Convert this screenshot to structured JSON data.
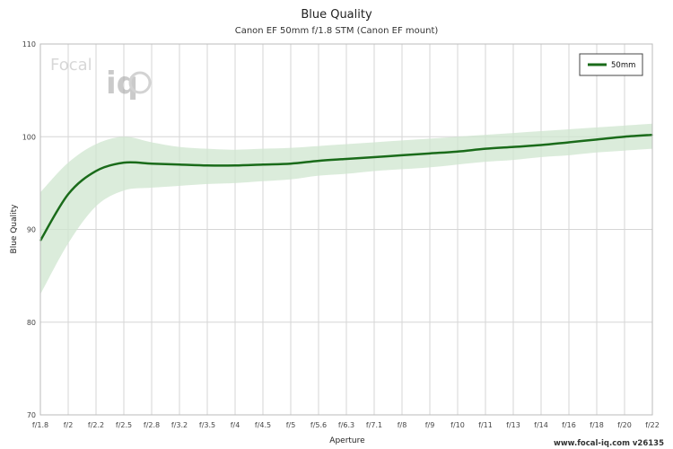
{
  "chart_data": {
    "type": "line",
    "title": "Blue Quality",
    "subtitle": "Canon EF 50mm f/1.8 STM (Canon EF mount)",
    "xlabel": "Aperture",
    "ylabel": "Blue Quality",
    "ylim": [
      70,
      110
    ],
    "yticks": [
      70,
      80,
      90,
      100,
      110
    ],
    "categories": [
      "f/1.8",
      "f/2",
      "f/2.2",
      "f/2.5",
      "f/2.8",
      "f/3.2",
      "f/3.5",
      "f/4",
      "f/4.5",
      "f/5",
      "f/5.6",
      "f/6.3",
      "f/7.1",
      "f/8",
      "f/9",
      "f/10",
      "f/11",
      "f/13",
      "f/14",
      "f/16",
      "f/18",
      "f/20",
      "f/22"
    ],
    "series": [
      {
        "name": "50mm",
        "color": "#1a6b1a",
        "values": [
          88.8,
          93.8,
          96.3,
          97.2,
          97.1,
          97.0,
          96.9,
          96.9,
          97.0,
          97.1,
          97.4,
          97.6,
          97.8,
          98.0,
          98.2,
          98.4,
          98.7,
          98.9,
          99.1,
          99.4,
          99.7,
          100.0,
          100.2
        ],
        "upper": [
          94.0,
          97.2,
          99.2,
          100.0,
          99.4,
          98.9,
          98.7,
          98.6,
          98.7,
          98.8,
          99.0,
          99.2,
          99.4,
          99.6,
          99.8,
          100.0,
          100.2,
          100.4,
          100.6,
          100.8,
          101.0,
          101.2,
          101.4
        ],
        "lower": [
          83.0,
          88.5,
          92.5,
          94.2,
          94.5,
          94.7,
          94.9,
          95.0,
          95.2,
          95.4,
          95.8,
          96.0,
          96.3,
          96.5,
          96.7,
          97.0,
          97.3,
          97.5,
          97.8,
          98.0,
          98.3,
          98.5,
          98.7
        ],
        "band_color": "#cfe5cf"
      }
    ],
    "grid": true,
    "legend_position": "top-right"
  },
  "logo": {
    "text_a": "Focal",
    "text_b": "iq"
  },
  "footer": "www.focal-iq.com  v26135"
}
